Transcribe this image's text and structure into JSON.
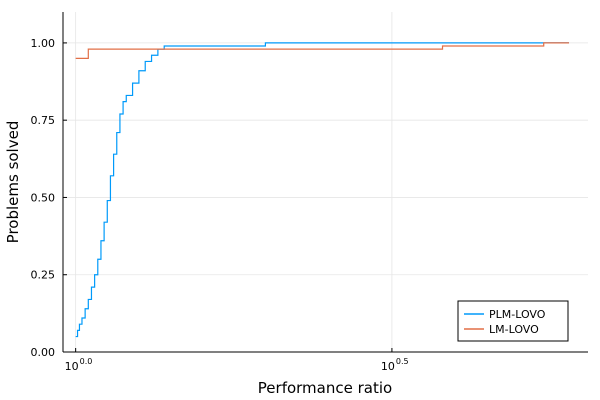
{
  "chart_data": {
    "type": "line",
    "xlabel": "Performance ratio",
    "ylabel": "Problems solved",
    "x_scale": "log10",
    "xlim_exponent": [
      -0.02,
      0.81
    ],
    "ylim": [
      0,
      1.1
    ],
    "x_ticks": [
      {
        "exponent": 0.0,
        "base": "10",
        "sup": "0.0"
      },
      {
        "exponent": 0.5,
        "base": "10",
        "sup": "0.5"
      }
    ],
    "y_ticks": [
      "0.00",
      "0.25",
      "0.50",
      "0.75",
      "1.00"
    ],
    "y_tick_values": [
      0,
      0.25,
      0.5,
      0.75,
      1.0
    ],
    "grid": true,
    "legend_position": "bottom-right",
    "series": [
      {
        "name": "PLM-LOVO",
        "color": "#009AFA",
        "points_exponent": [
          [
            0.0,
            0.05
          ],
          [
            0.003,
            0.07
          ],
          [
            0.006,
            0.09
          ],
          [
            0.01,
            0.11
          ],
          [
            0.015,
            0.14
          ],
          [
            0.02,
            0.17
          ],
          [
            0.025,
            0.21
          ],
          [
            0.03,
            0.25
          ],
          [
            0.035,
            0.3
          ],
          [
            0.04,
            0.36
          ],
          [
            0.045,
            0.42
          ],
          [
            0.05,
            0.49
          ],
          [
            0.055,
            0.57
          ],
          [
            0.06,
            0.64
          ],
          [
            0.065,
            0.71
          ],
          [
            0.07,
            0.77
          ],
          [
            0.075,
            0.81
          ],
          [
            0.08,
            0.83
          ],
          [
            0.09,
            0.87
          ],
          [
            0.1,
            0.91
          ],
          [
            0.11,
            0.94
          ],
          [
            0.12,
            0.96
          ],
          [
            0.13,
            0.98
          ],
          [
            0.14,
            0.99
          ],
          [
            0.3,
            1.0
          ],
          [
            0.78,
            1.0
          ]
        ]
      },
      {
        "name": "LM-LOVO",
        "color": "#E26F46",
        "points_exponent": [
          [
            0.0,
            0.95
          ],
          [
            0.02,
            0.98
          ],
          [
            0.58,
            0.98
          ],
          [
            0.58,
            0.99
          ],
          [
            0.74,
            0.99
          ],
          [
            0.74,
            1.0
          ],
          [
            0.78,
            1.0
          ]
        ]
      }
    ]
  }
}
